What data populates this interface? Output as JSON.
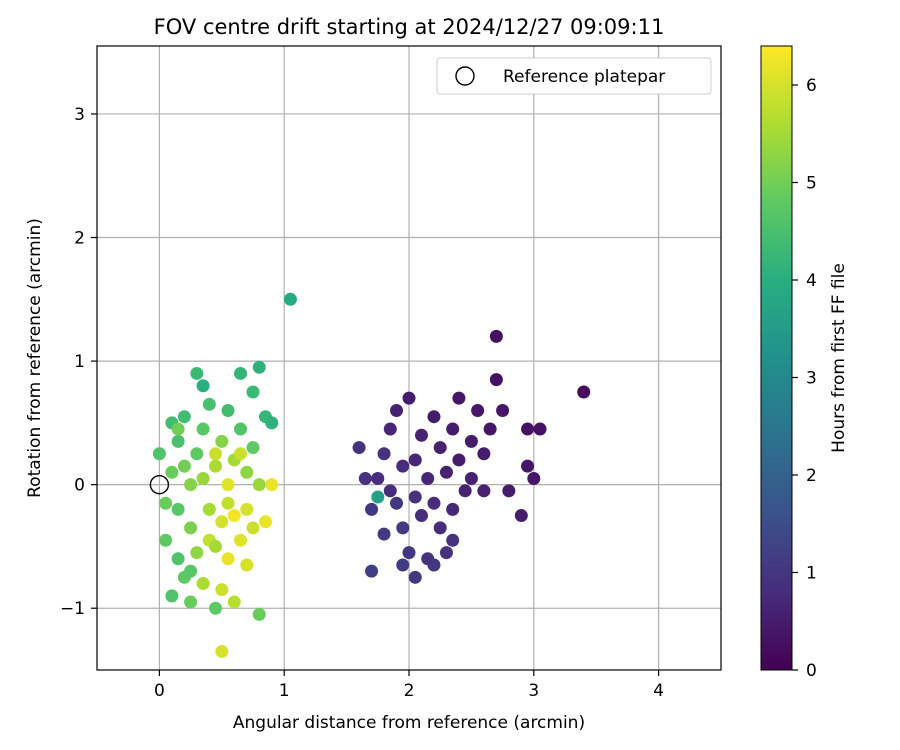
{
  "chart_data": {
    "type": "scatter",
    "title": "FOV centre drift starting at 2024/12/27 09:09:11",
    "xlabel": "Angular distance from reference (arcmin)",
    "ylabel": "Rotation from reference (arcmin)",
    "xlim": [
      -0.5,
      4.5
    ],
    "ylim": [
      -1.5,
      3.55
    ],
    "xticks": [
      0,
      1,
      2,
      3,
      4
    ],
    "xtick_labels": [
      "0",
      "1",
      "2",
      "3",
      "4"
    ],
    "yticks": [
      -1,
      0,
      1,
      2,
      3
    ],
    "ytick_labels": [
      "−1",
      "0",
      "1",
      "2",
      "3"
    ],
    "grid": true,
    "colorbar": {
      "label": "Hours from first FF file",
      "range": [
        0,
        6.4
      ],
      "ticks": [
        0,
        1,
        2,
        3,
        4,
        5,
        6
      ],
      "tick_labels": [
        "0",
        "1",
        "2",
        "3",
        "4",
        "5",
        "6"
      ],
      "colormap": "viridis"
    },
    "legend": {
      "label": "Reference platepar",
      "placement": "top-right"
    },
    "reference_point": {
      "x": 0,
      "y": 0
    },
    "points": [
      {
        "x": 1.6,
        "y": 0.3,
        "t": 0.9
      },
      {
        "x": 1.65,
        "y": 0.05,
        "t": 0.9
      },
      {
        "x": 1.7,
        "y": -0.2,
        "t": 1.0
      },
      {
        "x": 1.75,
        "y": 0.05,
        "t": 0.8
      },
      {
        "x": 1.8,
        "y": 0.25,
        "t": 0.9
      },
      {
        "x": 1.8,
        "y": -0.4,
        "t": 1.1
      },
      {
        "x": 1.85,
        "y": -0.05,
        "t": 0.8
      },
      {
        "x": 1.85,
        "y": 0.45,
        "t": 0.7
      },
      {
        "x": 1.9,
        "y": 0.6,
        "t": 0.6
      },
      {
        "x": 1.9,
        "y": -0.15,
        "t": 1.0
      },
      {
        "x": 1.95,
        "y": 0.15,
        "t": 0.8
      },
      {
        "x": 1.95,
        "y": -0.35,
        "t": 1.1
      },
      {
        "x": 2.0,
        "y": 0.7,
        "t": 0.5
      },
      {
        "x": 2.0,
        "y": -0.55,
        "t": 1.0
      },
      {
        "x": 2.05,
        "y": 0.2,
        "t": 0.7
      },
      {
        "x": 2.05,
        "y": -0.1,
        "t": 0.9
      },
      {
        "x": 2.1,
        "y": 0.4,
        "t": 0.6
      },
      {
        "x": 2.1,
        "y": -0.25,
        "t": 0.8
      },
      {
        "x": 2.15,
        "y": 0.05,
        "t": 0.7
      },
      {
        "x": 2.15,
        "y": -0.6,
        "t": 0.9
      },
      {
        "x": 2.2,
        "y": 0.55,
        "t": 0.5
      },
      {
        "x": 2.2,
        "y": -0.15,
        "t": 0.8
      },
      {
        "x": 2.25,
        "y": 0.3,
        "t": 0.6
      },
      {
        "x": 2.25,
        "y": -0.35,
        "t": 0.8
      },
      {
        "x": 2.3,
        "y": 0.1,
        "t": 0.6
      },
      {
        "x": 2.3,
        "y": -0.55,
        "t": 0.9
      },
      {
        "x": 2.35,
        "y": 0.45,
        "t": 0.5
      },
      {
        "x": 2.35,
        "y": -0.2,
        "t": 0.7
      },
      {
        "x": 2.4,
        "y": 0.2,
        "t": 0.5
      },
      {
        "x": 2.4,
        "y": 0.7,
        "t": 0.4
      },
      {
        "x": 2.45,
        "y": -0.05,
        "t": 0.6
      },
      {
        "x": 2.5,
        "y": 0.35,
        "t": 0.5
      },
      {
        "x": 2.5,
        "y": 0.05,
        "t": 0.6
      },
      {
        "x": 2.55,
        "y": 0.6,
        "t": 0.4
      },
      {
        "x": 2.6,
        "y": 0.25,
        "t": 0.5
      },
      {
        "x": 2.6,
        "y": -0.05,
        "t": 0.6
      },
      {
        "x": 2.65,
        "y": 0.45,
        "t": 0.4
      },
      {
        "x": 2.7,
        "y": 0.85,
        "t": 0.3
      },
      {
        "x": 2.7,
        "y": 1.2,
        "t": 0.3
      },
      {
        "x": 2.75,
        "y": 0.6,
        "t": 0.4
      },
      {
        "x": 2.8,
        "y": -0.05,
        "t": 0.5
      },
      {
        "x": 2.9,
        "y": -0.25,
        "t": 0.5
      },
      {
        "x": 2.95,
        "y": 0.45,
        "t": 0.3
      },
      {
        "x": 2.95,
        "y": 0.15,
        "t": 0.4
      },
      {
        "x": 3.0,
        "y": 0.05,
        "t": 0.4
      },
      {
        "x": 3.05,
        "y": 0.45,
        "t": 0.3
      },
      {
        "x": 3.4,
        "y": 0.75,
        "t": 0.2
      },
      {
        "x": 1.7,
        "y": -0.7,
        "t": 1.2
      },
      {
        "x": 1.95,
        "y": -0.65,
        "t": 1.1
      },
      {
        "x": 2.05,
        "y": -0.75,
        "t": 1.0
      },
      {
        "x": 2.2,
        "y": -0.65,
        "t": 1.0
      },
      {
        "x": 2.35,
        "y": -0.45,
        "t": 0.9
      },
      {
        "x": 1.75,
        "y": -0.1,
        "t": 3.6
      },
      {
        "x": 0.0,
        "y": 0.25,
        "t": 4.6
      },
      {
        "x": 0.05,
        "y": -0.45,
        "t": 4.8
      },
      {
        "x": 0.1,
        "y": 0.5,
        "t": 4.4
      },
      {
        "x": 0.1,
        "y": -0.9,
        "t": 4.6
      },
      {
        "x": 0.1,
        "y": 0.1,
        "t": 4.9
      },
      {
        "x": 0.15,
        "y": -0.2,
        "t": 4.7
      },
      {
        "x": 0.15,
        "y": 0.35,
        "t": 4.5
      },
      {
        "x": 0.15,
        "y": -0.6,
        "t": 4.6
      },
      {
        "x": 0.2,
        "y": 0.15,
        "t": 5.0
      },
      {
        "x": 0.2,
        "y": -0.75,
        "t": 4.8
      },
      {
        "x": 0.2,
        "y": 0.55,
        "t": 4.4
      },
      {
        "x": 0.25,
        "y": -0.35,
        "t": 5.1
      },
      {
        "x": 0.25,
        "y": 0.0,
        "t": 5.2
      },
      {
        "x": 0.25,
        "y": -0.95,
        "t": 4.9
      },
      {
        "x": 0.3,
        "y": 0.25,
        "t": 4.8
      },
      {
        "x": 0.3,
        "y": -0.55,
        "t": 5.3
      },
      {
        "x": 0.3,
        "y": 0.9,
        "t": 4.3
      },
      {
        "x": 0.35,
        "y": 0.05,
        "t": 5.4
      },
      {
        "x": 0.35,
        "y": -0.8,
        "t": 5.6
      },
      {
        "x": 0.35,
        "y": 0.45,
        "t": 4.7
      },
      {
        "x": 0.4,
        "y": -0.2,
        "t": 5.5
      },
      {
        "x": 0.4,
        "y": 0.65,
        "t": 4.5
      },
      {
        "x": 0.4,
        "y": -0.45,
        "t": 5.8
      },
      {
        "x": 0.45,
        "y": 0.15,
        "t": 5.6
      },
      {
        "x": 0.45,
        "y": -1.0,
        "t": 4.8
      },
      {
        "x": 0.5,
        "y": -0.3,
        "t": 6.0
      },
      {
        "x": 0.5,
        "y": 0.35,
        "t": 5.2
      },
      {
        "x": 0.5,
        "y": -0.85,
        "t": 5.9
      },
      {
        "x": 0.5,
        "y": -1.35,
        "t": 6.0
      },
      {
        "x": 0.55,
        "y": 0.0,
        "t": 6.1
      },
      {
        "x": 0.55,
        "y": 0.6,
        "t": 4.4
      },
      {
        "x": 0.55,
        "y": -0.6,
        "t": 6.2
      },
      {
        "x": 0.6,
        "y": 0.2,
        "t": 5.5
      },
      {
        "x": 0.6,
        "y": -0.25,
        "t": 6.3
      },
      {
        "x": 0.6,
        "y": -0.95,
        "t": 5.7
      },
      {
        "x": 0.65,
        "y": 0.9,
        "t": 4.2
      },
      {
        "x": 0.65,
        "y": 0.45,
        "t": 4.6
      },
      {
        "x": 0.65,
        "y": -0.45,
        "t": 6.1
      },
      {
        "x": 0.7,
        "y": 0.1,
        "t": 5.3
      },
      {
        "x": 0.7,
        "y": -0.65,
        "t": 6.0
      },
      {
        "x": 0.75,
        "y": 0.75,
        "t": 4.3
      },
      {
        "x": 0.75,
        "y": 0.3,
        "t": 4.8
      },
      {
        "x": 0.75,
        "y": -0.35,
        "t": 5.9
      },
      {
        "x": 0.8,
        "y": 0.95,
        "t": 4.1
      },
      {
        "x": 0.8,
        "y": 0.0,
        "t": 5.4
      },
      {
        "x": 0.8,
        "y": -1.05,
        "t": 4.9
      },
      {
        "x": 0.85,
        "y": 0.55,
        "t": 4.2
      },
      {
        "x": 0.85,
        "y": -0.3,
        "t": 6.2
      },
      {
        "x": 0.9,
        "y": 0.5,
        "t": 4.1
      },
      {
        "x": 0.9,
        "y": 0.0,
        "t": 6.2
      },
      {
        "x": 1.05,
        "y": 1.5,
        "t": 3.9
      },
      {
        "x": 0.35,
        "y": 0.8,
        "t": 4.0
      },
      {
        "x": 0.15,
        "y": 0.45,
        "t": 5.0
      },
      {
        "x": 0.05,
        "y": -0.15,
        "t": 4.9
      },
      {
        "x": 0.25,
        "y": -0.7,
        "t": 4.7
      },
      {
        "x": 0.45,
        "y": 0.25,
        "t": 5.9
      },
      {
        "x": 0.55,
        "y": -0.15,
        "t": 5.8
      },
      {
        "x": 0.65,
        "y": 0.25,
        "t": 5.9
      },
      {
        "x": 0.7,
        "y": -0.2,
        "t": 6.0
      },
      {
        "x": 0.45,
        "y": -0.5,
        "t": 5.5
      }
    ]
  }
}
